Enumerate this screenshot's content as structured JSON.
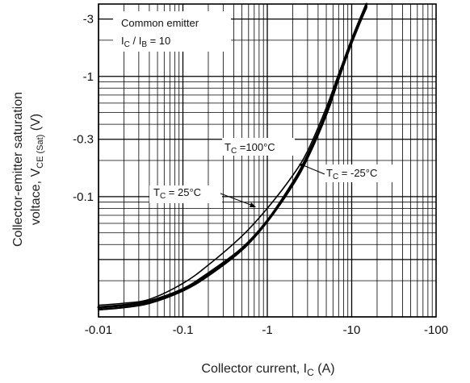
{
  "chart_data": {
    "type": "line",
    "x_scale": "log",
    "y_scale": "log",
    "xlim": [
      -0.01,
      -100
    ],
    "ylim": [
      -0.01,
      -4
    ],
    "grid": true,
    "x_ticks": [
      "-0.01",
      "-0.1",
      "-1",
      "-10",
      "-100"
    ],
    "y_ticks": [
      "-3",
      "-1",
      "-0.3",
      "-0.1"
    ],
    "xlabel": {
      "main": "Collector current, I",
      "sub": "C",
      "unit": " (A)"
    },
    "ylabel": {
      "line1": "Collector-emitter saturation",
      "line2_main": "voltace, V",
      "line2_sub": "CE (Sat)",
      "line2_unit": " (V)"
    },
    "annotation": {
      "line1": "Common emitter",
      "line2_a": "I",
      "line2_a_sub": "C",
      "line2_mid": " / I",
      "line2_b_sub": "B",
      "line2_end": " = 10"
    },
    "series": [
      {
        "name": "TC = 25°C",
        "label_main": "T",
        "label_sub": "C",
        "label_rest": " = 25°C",
        "x": [
          -0.01,
          -0.02,
          -0.04,
          -0.1,
          -0.2,
          -0.5,
          -1,
          -2,
          -3,
          -5,
          -7,
          -10,
          -15
        ],
        "y": [
          -0.012,
          -0.0125,
          -0.0135,
          -0.017,
          -0.023,
          -0.037,
          -0.063,
          -0.13,
          -0.22,
          -0.5,
          -1.0,
          -2.0,
          -4.0
        ]
      },
      {
        "name": "TC = 100°C",
        "label_main": "T",
        "label_sub": "C",
        "label_rest": " =100°C",
        "x": [
          -0.01,
          -0.02,
          -0.04,
          -0.1,
          -0.2,
          -0.5,
          -1,
          -2,
          -3,
          -5,
          -7,
          -10,
          -15
        ],
        "y": [
          -0.0125,
          -0.013,
          -0.014,
          -0.019,
          -0.027,
          -0.047,
          -0.08,
          -0.15,
          -0.24,
          -0.55,
          -1.05,
          -2.0,
          -3.7
        ]
      },
      {
        "name": "TC = -25°C",
        "label_main": "T",
        "label_sub": "C",
        "label_rest": " = -25°C",
        "x": [
          -0.01,
          -0.02,
          -0.04,
          -0.1,
          -0.2,
          -0.5,
          -1,
          -2,
          -3,
          -5,
          -7,
          -10,
          -15
        ],
        "y": [
          -0.0115,
          -0.012,
          -0.013,
          -0.0165,
          -0.022,
          -0.036,
          -0.062,
          -0.125,
          -0.21,
          -0.48,
          -0.95,
          -1.9,
          -3.8
        ]
      }
    ]
  }
}
